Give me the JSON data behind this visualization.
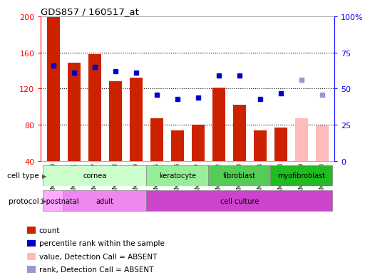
{
  "title": "GDS857 / 160517_at",
  "samples": [
    "GSM32930",
    "GSM32931",
    "GSM32927",
    "GSM32928",
    "GSM32929",
    "GSM32935",
    "GSM32936",
    "GSM32937",
    "GSM32932",
    "GSM32933",
    "GSM32934",
    "GSM32938",
    "GSM32939",
    "GSM32940"
  ],
  "counts": [
    199,
    149,
    158,
    128,
    132,
    87,
    74,
    80,
    121,
    102,
    74,
    77,
    null,
    null
  ],
  "counts_absent": [
    null,
    null,
    null,
    null,
    null,
    null,
    null,
    null,
    null,
    null,
    null,
    null,
    87,
    79
  ],
  "ranks": [
    66,
    61,
    65,
    62,
    61,
    46,
    43,
    44,
    59,
    59,
    43,
    47,
    null,
    null
  ],
  "ranks_absent": [
    null,
    null,
    null,
    null,
    null,
    null,
    null,
    null,
    null,
    null,
    null,
    null,
    56,
    46
  ],
  "ylim": [
    40,
    200
  ],
  "y2lim": [
    0,
    100
  ],
  "yticks": [
    40,
    80,
    120,
    160,
    200
  ],
  "y2ticks": [
    0,
    25,
    50,
    75,
    100
  ],
  "y2ticklabels": [
    "0",
    "25",
    "50",
    "75",
    "100%"
  ],
  "cell_type_groups": [
    {
      "label": "cornea",
      "start": 0,
      "end": 5,
      "color": "#ccffcc"
    },
    {
      "label": "keratocyte",
      "start": 5,
      "end": 8,
      "color": "#99ee99"
    },
    {
      "label": "fibroblast",
      "start": 8,
      "end": 11,
      "color": "#55cc55"
    },
    {
      "label": "myofibroblast",
      "start": 11,
      "end": 14,
      "color": "#22bb22"
    }
  ],
  "protocol_groups": [
    {
      "label": "10 d postnatal",
      "start": 0,
      "end": 1,
      "color": "#ffaaff"
    },
    {
      "label": "adult",
      "start": 1,
      "end": 5,
      "color": "#ee88ee"
    },
    {
      "label": "cell culture",
      "start": 5,
      "end": 14,
      "color": "#cc44cc"
    }
  ],
  "bar_color_present": "#cc2200",
  "bar_color_absent": "#ffbbbb",
  "rank_color_present": "#0000cc",
  "rank_color_absent": "#9999cc",
  "legend_items": [
    {
      "color": "#cc2200",
      "label": "count"
    },
    {
      "color": "#0000cc",
      "label": "percentile rank within the sample"
    },
    {
      "color": "#ffbbbb",
      "label": "value, Detection Call = ABSENT"
    },
    {
      "color": "#9999cc",
      "label": "rank, Detection Call = ABSENT"
    }
  ]
}
